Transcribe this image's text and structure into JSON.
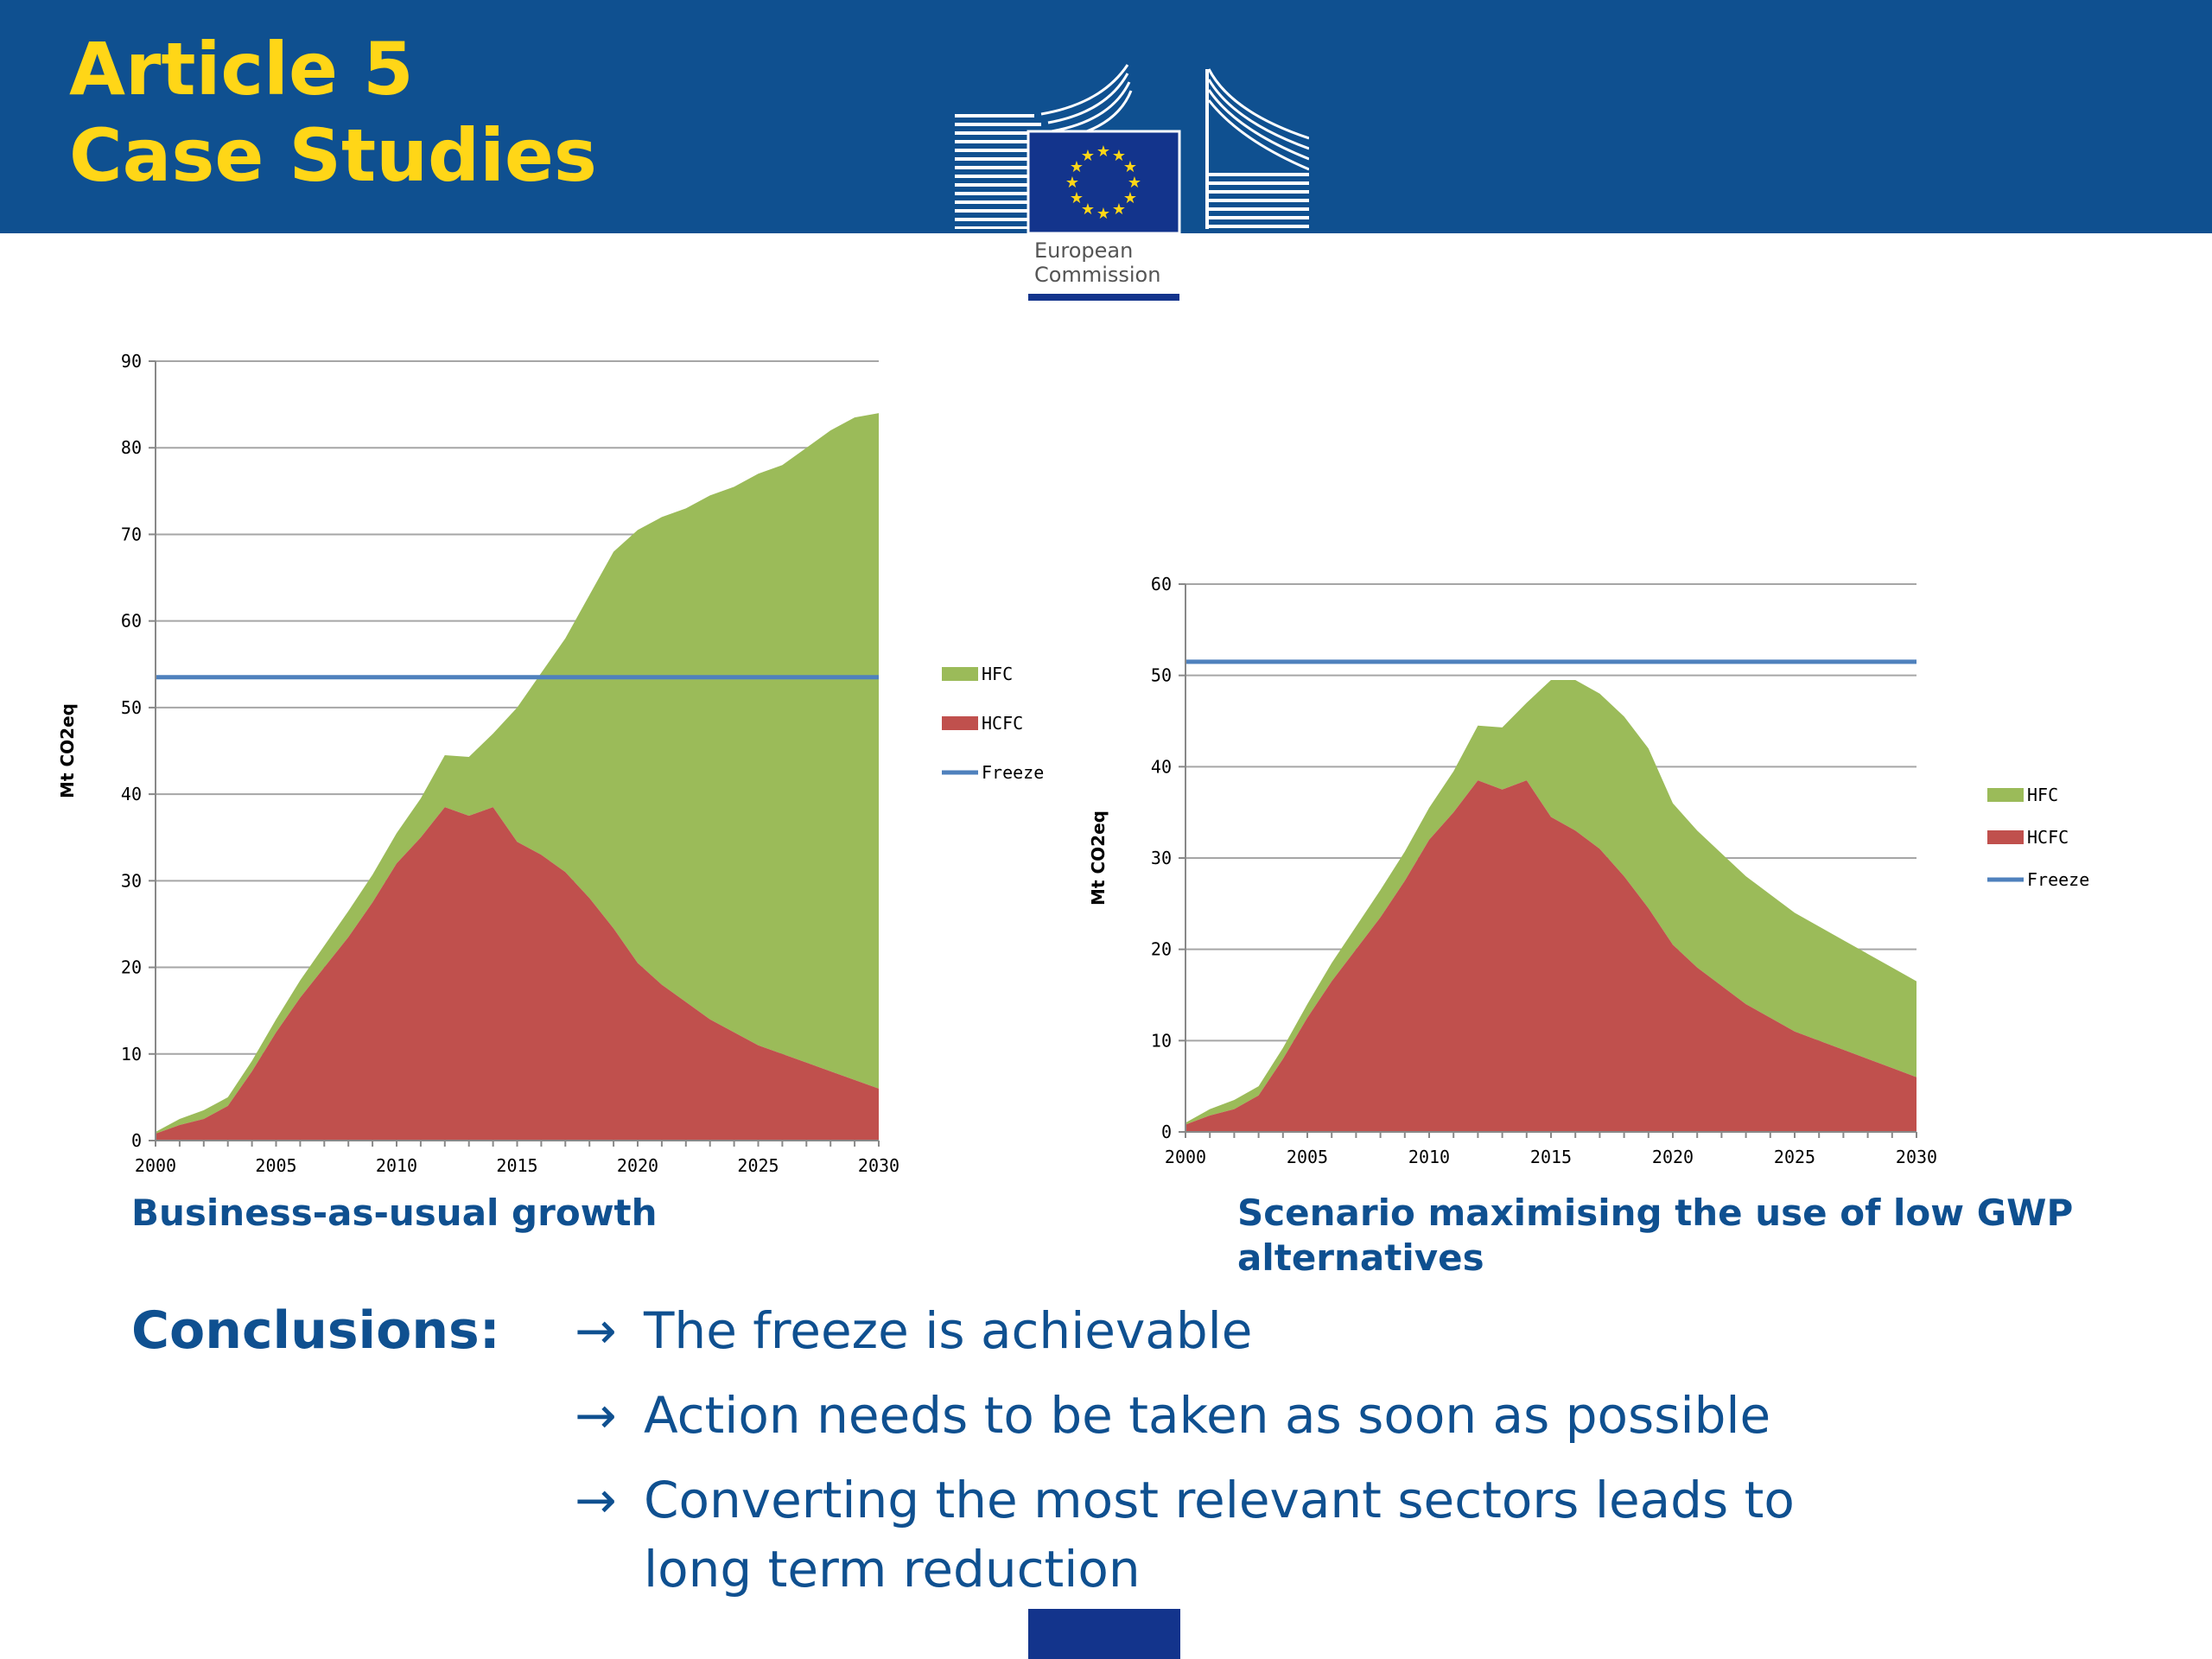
{
  "header": {
    "title_line1": "Article 5",
    "title_line2": "Case Studies",
    "logo": {
      "line1": "European",
      "line2": "Commission",
      "icon": "european-commission-logo"
    }
  },
  "colors": {
    "header_bg": "#0f5090",
    "title": "#ffd617",
    "hfc": "#9bbb59",
    "hcfc": "#c0504d",
    "freeze": "#4f81bd",
    "text_blue": "#0f5090",
    "eu_blue": "#13348c"
  },
  "chart_data": [
    {
      "type": "area",
      "caption": "Business-as-usual growth",
      "ylabel": "Mt CO2eq",
      "ylim": [
        0,
        90
      ],
      "yticks": [
        0,
        10,
        20,
        30,
        40,
        50,
        60,
        70,
        80,
        90
      ],
      "xlim": [
        2000,
        2030
      ],
      "xticks": [
        2000,
        2005,
        2010,
        2015,
        2020,
        2025,
        2030
      ],
      "grid": true,
      "legend_position": "right",
      "x": [
        2000,
        2001,
        2002,
        2003,
        2004,
        2005,
        2006,
        2007,
        2008,
        2009,
        2010,
        2011,
        2012,
        2013,
        2014,
        2015,
        2016,
        2017,
        2018,
        2019,
        2020,
        2021,
        2022,
        2023,
        2024,
        2025,
        2026,
        2027,
        2028,
        2029,
        2030
      ],
      "series": [
        {
          "name": "HCFC",
          "kind": "area",
          "values": [
            0.8,
            1.8,
            2.5,
            4,
            8,
            12.5,
            16.5,
            20,
            23.5,
            27.5,
            32,
            35,
            38.5,
            37.5,
            38.5,
            34.5,
            33,
            31,
            28,
            24.5,
            20.5,
            18,
            16,
            14,
            12.5,
            11,
            10,
            9,
            8,
            7,
            6
          ]
        },
        {
          "name": "HFC",
          "kind": "area",
          "values": [
            0.2,
            0.7,
            1,
            1,
            1.2,
            1.5,
            2,
            2.5,
            3,
            3.2,
            3.5,
            4.5,
            6,
            6.8,
            8.5,
            15.5,
            21,
            27,
            35,
            43.5,
            50,
            54,
            57,
            60.5,
            63,
            66,
            68,
            71,
            74,
            76.5,
            78
          ]
        },
        {
          "name": "Freeze",
          "kind": "line",
          "value": 53.5
        }
      ]
    },
    {
      "type": "area",
      "caption": "Scenario maximising the use of low GWP alternatives",
      "ylabel": "Mt CO2eq",
      "ylim": [
        0,
        60
      ],
      "yticks": [
        0,
        10,
        20,
        30,
        40,
        50,
        60
      ],
      "xlim": [
        2000,
        2030
      ],
      "xticks": [
        2000,
        2005,
        2010,
        2015,
        2020,
        2025,
        2030
      ],
      "grid": true,
      "legend_position": "right",
      "x": [
        2000,
        2001,
        2002,
        2003,
        2004,
        2005,
        2006,
        2007,
        2008,
        2009,
        2010,
        2011,
        2012,
        2013,
        2014,
        2015,
        2016,
        2017,
        2018,
        2019,
        2020,
        2021,
        2022,
        2023,
        2024,
        2025,
        2026,
        2027,
        2028,
        2029,
        2030
      ],
      "series": [
        {
          "name": "HCFC",
          "kind": "area",
          "values": [
            0.8,
            1.8,
            2.5,
            4,
            8,
            12.5,
            16.5,
            20,
            23.5,
            27.5,
            32,
            35,
            38.5,
            37.5,
            38.5,
            34.5,
            33,
            31,
            28,
            24.5,
            20.5,
            18,
            16,
            14,
            12.5,
            11,
            10,
            9,
            8,
            7,
            6
          ]
        },
        {
          "name": "HFC",
          "kind": "area",
          "values": [
            0.2,
            0.7,
            1,
            1,
            1.2,
            1.5,
            2,
            2.5,
            3,
            3.2,
            3.5,
            4.5,
            6,
            6.8,
            8.5,
            15,
            16.5,
            17,
            17.5,
            17.5,
            15.5,
            15,
            14.5,
            14,
            13.5,
            13,
            12.5,
            12,
            11.5,
            11,
            10.5
          ]
        },
        {
          "name": "Freeze",
          "kind": "line",
          "value": 51.5
        }
      ]
    }
  ],
  "conclusions": {
    "label": "Conclusions:",
    "arrow": "→",
    "items": [
      "The freeze is achievable",
      "Action needs to be taken as soon as possible",
      "Converting the most relevant sectors leads to long term reduction"
    ]
  }
}
